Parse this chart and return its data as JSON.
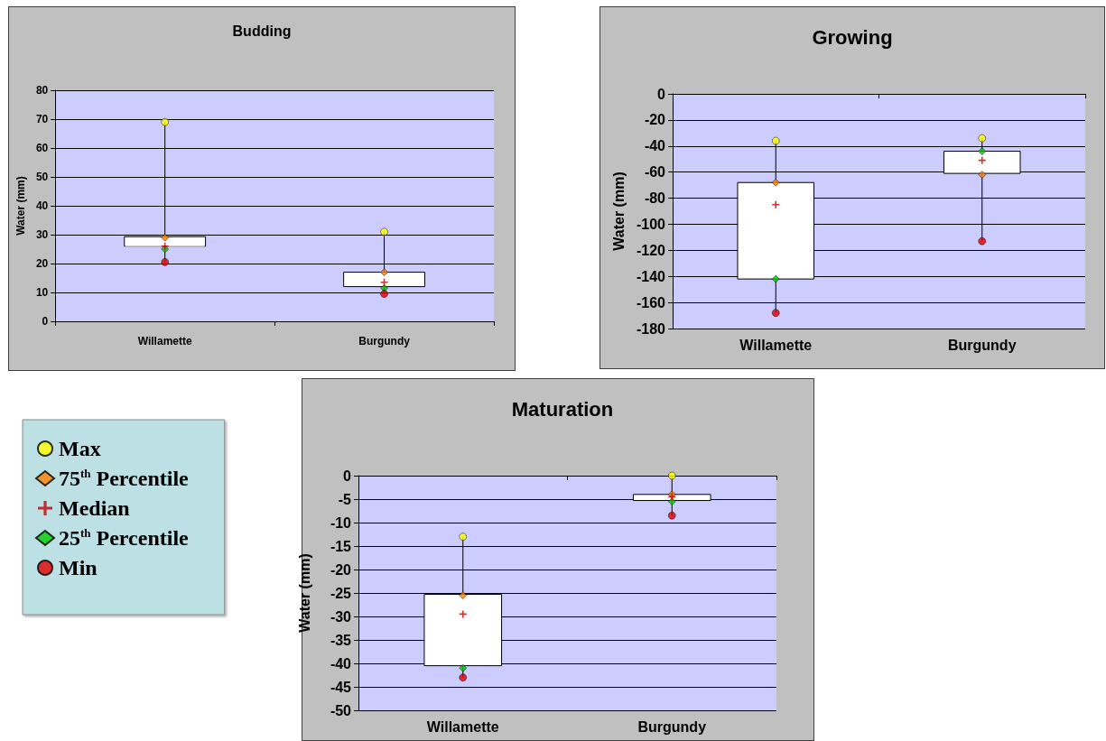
{
  "chart_data": [
    {
      "type": "box",
      "title": "Budding",
      "ylabel": "Water (mm)",
      "categories": [
        "Willamette",
        "Burgundy"
      ],
      "ylim": [
        0,
        80
      ],
      "yticks": [
        0,
        10,
        20,
        30,
        40,
        50,
        60,
        70,
        80
      ],
      "grid": "y",
      "legend": false,
      "boxes": [
        {
          "low": 20.5,
          "q1": 26,
          "median": 26,
          "q3": 29.3,
          "high": 69
        },
        {
          "low": 9.5,
          "q1": 12,
          "median": 13.5,
          "q3": 17,
          "high": 31
        }
      ],
      "series": [
        {
          "type": "scatter",
          "color": "#ffff00",
          "marker": "circle",
          "x": [
            "Willamette",
            "Burgundy"
          ],
          "values": [
            69,
            31
          ]
        },
        {
          "type": "scatter",
          "color": "#ff8000",
          "marker": "diamond",
          "x": [
            "Willamette",
            "Burgundy"
          ],
          "values": [
            29,
            17
          ]
        },
        {
          "type": "scatter",
          "color": "#c00000",
          "marker": "cross",
          "x": [
            "Willamette",
            "Burgundy"
          ],
          "values": [
            26,
            13.5
          ]
        },
        {
          "type": "scatter",
          "color": "#00cc00",
          "marker": "diamond",
          "x": [
            "Willamette",
            "Burgundy"
          ],
          "values": [
            25,
            11.5
          ]
        },
        {
          "type": "scatter",
          "color": "#e00000",
          "marker": "circle",
          "x": [
            "Willamette",
            "Burgundy"
          ],
          "values": [
            20.5,
            9.5
          ]
        }
      ]
    },
    {
      "type": "box",
      "title": "Growing",
      "ylabel": "Water (mm)",
      "categories": [
        "Willamette",
        "Burgundy"
      ],
      "ylim": [
        -180,
        0
      ],
      "yticks": [
        -180,
        -160,
        -140,
        -120,
        -100,
        -80,
        -60,
        -40,
        -20,
        0
      ],
      "grid": "y",
      "legend": false,
      "boxes": [
        {
          "low": -168,
          "q1": -142,
          "median": -85,
          "q3": -68,
          "high": -36
        },
        {
          "low": -113,
          "q1": -61,
          "median": -51,
          "q3": -44,
          "high": -34
        }
      ],
      "series": [
        {
          "type": "scatter",
          "color": "#ffff00",
          "marker": "circle",
          "x": [
            "Willamette",
            "Burgundy"
          ],
          "values": [
            -36,
            -34
          ]
        },
        {
          "type": "scatter",
          "color": "#ff8000",
          "marker": "diamond",
          "x": [
            "Willamette",
            "Burgundy"
          ],
          "values": [
            -68,
            -62
          ]
        },
        {
          "type": "scatter",
          "color": "#c00000",
          "marker": "cross",
          "x": [
            "Willamette",
            "Burgundy"
          ],
          "values": [
            -85,
            -51
          ]
        },
        {
          "type": "scatter",
          "color": "#00cc00",
          "marker": "diamond",
          "x": [
            "Willamette",
            "Burgundy"
          ],
          "values": [
            -142,
            -44
          ]
        },
        {
          "type": "scatter",
          "color": "#e00000",
          "marker": "circle",
          "x": [
            "Willamette",
            "Burgundy"
          ],
          "values": [
            -168,
            -113
          ]
        }
      ]
    },
    {
      "type": "box",
      "title": "Maturation",
      "ylabel": "Water (mm)",
      "categories": [
        "Willamette",
        "Burgundy"
      ],
      "ylim": [
        -50,
        0
      ],
      "yticks": [
        -50,
        -45,
        -40,
        -35,
        -30,
        -25,
        -20,
        -15,
        -10,
        -5,
        0
      ],
      "grid": "y",
      "legend": "left",
      "boxes": [
        {
          "low": -43,
          "q1": -40.5,
          "median": -29.5,
          "q3": -25.3,
          "high": -13
        },
        {
          "low": -8.5,
          "q1": -5.3,
          "median": -4.5,
          "q3": -4,
          "high": 0
        }
      ],
      "series": [
        {
          "type": "scatter",
          "name": "Max",
          "color": "#ffff00",
          "marker": "circle",
          "x": [
            "Willamette",
            "Burgundy"
          ],
          "values": [
            -13,
            0
          ]
        },
        {
          "type": "scatter",
          "name": "75$^{th}$ Percentile",
          "color": "#ff8000",
          "marker": "diamond",
          "x": [
            "Willamette",
            "Burgundy"
          ],
          "values": [
            -25.5,
            -4
          ]
        },
        {
          "type": "scatter",
          "name": "Median",
          "color": "#c00000",
          "marker": "cross",
          "x": [
            "Willamette",
            "Burgundy"
          ],
          "values": [
            -29.5,
            -4.5
          ]
        },
        {
          "type": "scatter",
          "name": "25$^{th}$ Percentile",
          "color": "#00cc00",
          "marker": "diamond",
          "x": [
            "Willamette",
            "Burgundy"
          ],
          "values": [
            -41,
            -5.5
          ]
        },
        {
          "type": "scatter",
          "name": "Min",
          "color": "#e00000",
          "marker": "circle",
          "x": [
            "Willamette",
            "Burgundy"
          ],
          "values": [
            -43,
            -8.5
          ]
        }
      ]
    }
  ]
}
